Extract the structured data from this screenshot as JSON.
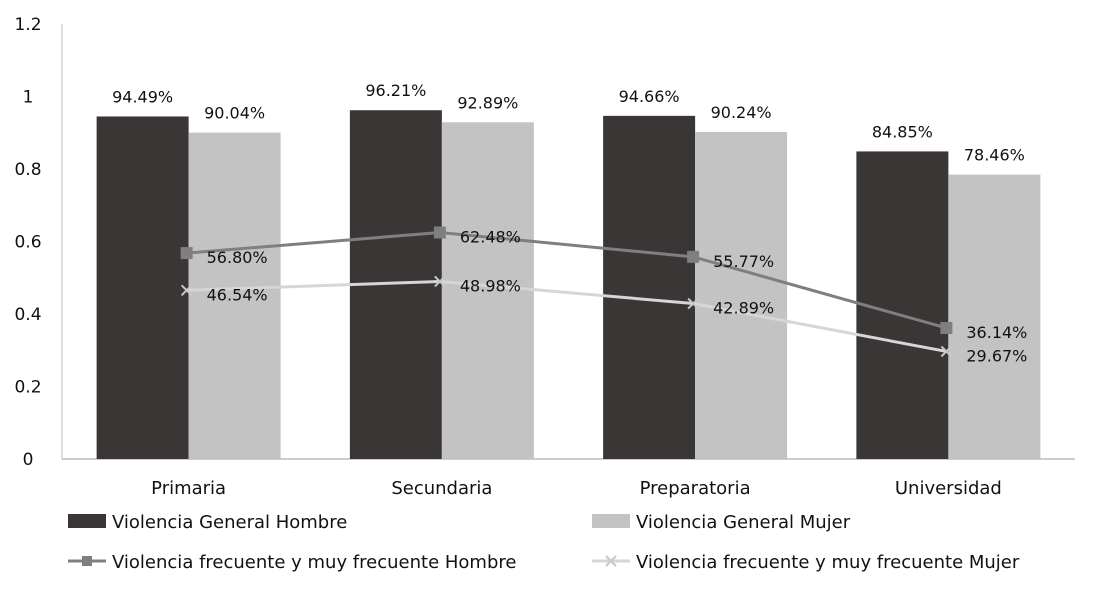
{
  "chart_data": {
    "type": "bar",
    "categories": [
      "Primaria",
      "Secundaria",
      "Preparatoria",
      "Universidad"
    ],
    "ylim": [
      0,
      1.2
    ],
    "yticks": [
      "0",
      "0.2",
      "0.4",
      "0.6",
      "0.8",
      "1",
      "1.2"
    ],
    "legend_position": "bottom",
    "grid": false,
    "bar_series": [
      {
        "name": "Violencia General Hombre",
        "color": "#3a3636",
        "values": [
          0.9449,
          0.9621,
          0.9466,
          0.8485
        ],
        "labels": [
          "94.49%",
          "96.21%",
          "94.66%",
          "84.85%"
        ]
      },
      {
        "name": "Violencia General Mujer",
        "color": "#c3c3c3",
        "values": [
          0.9004,
          0.9289,
          0.9024,
          0.7846
        ],
        "labels": [
          "90.04%",
          "92.89%",
          "90.24%",
          "78.46%"
        ]
      }
    ],
    "line_series": [
      {
        "name": "Violencia frecuente y muy frecuente Hombre",
        "color": "#7f7f7f",
        "marker": "square",
        "values": [
          0.568,
          0.6248,
          0.5577,
          0.3614
        ],
        "labels": [
          "56.80%",
          "62.48%",
          "55.77%",
          "36.14%"
        ]
      },
      {
        "name": "Violencia frecuente y muy frecuente Mujer",
        "color": "#d6d6d6",
        "marker": "x",
        "values": [
          0.4654,
          0.4898,
          0.4289,
          0.2967
        ],
        "labels": [
          "46.54%",
          "48.98%",
          "42.89%",
          "29.67%"
        ]
      }
    ]
  }
}
